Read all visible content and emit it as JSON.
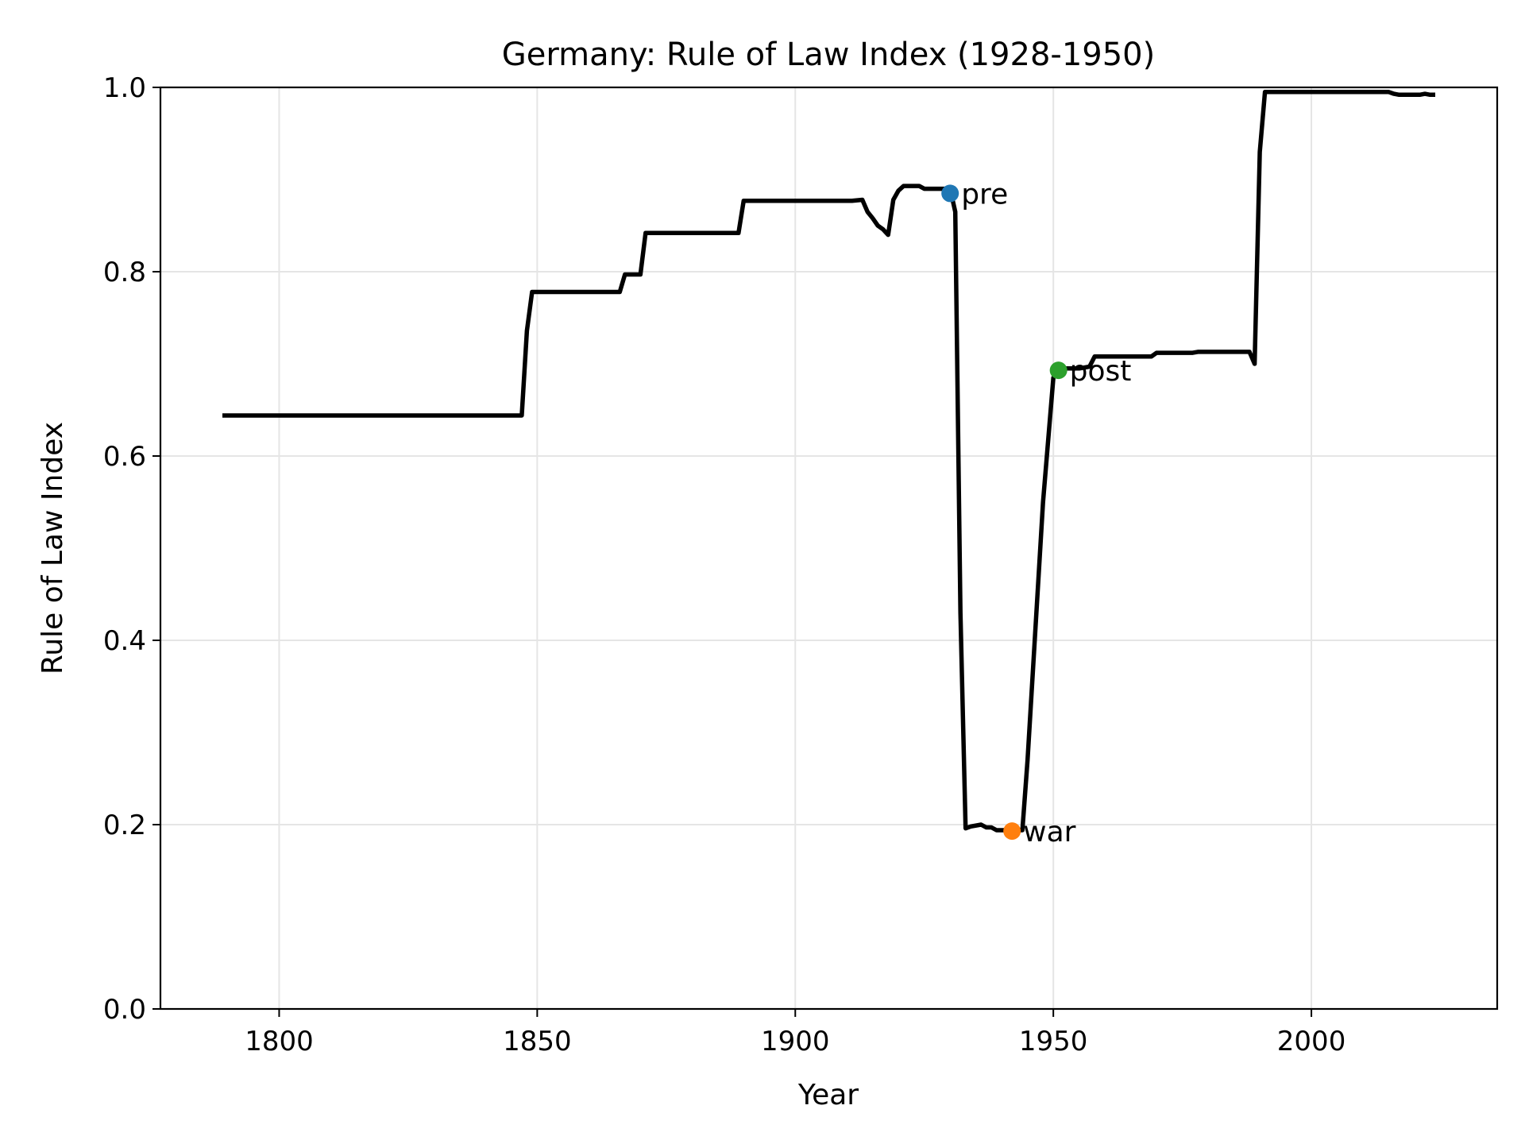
{
  "chart_data": {
    "type": "line",
    "title": "Germany: Rule of Law Index (1928-1950)",
    "xlabel": "Year",
    "ylabel": "Rule of Law Index",
    "xlim": [
      1777,
      2036
    ],
    "ylim": [
      0,
      1.0
    ],
    "x_ticks": [
      1800,
      1850,
      1900,
      1950,
      2000
    ],
    "x_tick_labels": [
      "1800",
      "1850",
      "1900",
      "1950",
      "2000"
    ],
    "y_ticks": [
      0.0,
      0.2,
      0.4,
      0.6,
      0.8,
      1.0
    ],
    "y_tick_labels": [
      "0.0",
      "0.2",
      "0.4",
      "0.6",
      "0.8",
      "1.0"
    ],
    "grid": true,
    "line_color": "#000000",
    "series": [
      {
        "x": [
          1789,
          1847,
          1848,
          1849,
          1866,
          1867,
          1870,
          1871,
          1889,
          1890,
          1911,
          1913,
          1914,
          1915,
          1916,
          1917,
          1918,
          1919,
          1920,
          1921,
          1922,
          1924,
          1925,
          1930,
          1931,
          1932,
          1933,
          1934,
          1936,
          1937,
          1938,
          1939,
          1944,
          1945,
          1948,
          1950,
          1951,
          1952,
          1955,
          1957,
          1958,
          1969,
          1970,
          1977,
          1978,
          1988,
          1989,
          1990,
          1991,
          2015,
          2016,
          2017,
          2020,
          2021,
          2022,
          2023,
          2024
        ],
        "y": [
          0.644,
          0.644,
          0.736,
          0.778,
          0.778,
          0.797,
          0.797,
          0.842,
          0.842,
          0.877,
          0.877,
          0.878,
          0.865,
          0.858,
          0.85,
          0.846,
          0.84,
          0.878,
          0.888,
          0.893,
          0.893,
          0.893,
          0.89,
          0.89,
          0.865,
          0.43,
          0.196,
          0.198,
          0.2,
          0.197,
          0.197,
          0.194,
          0.194,
          0.27,
          0.55,
          0.685,
          0.692,
          0.695,
          0.695,
          0.697,
          0.708,
          0.708,
          0.712,
          0.712,
          0.713,
          0.713,
          0.7,
          0.93,
          0.995,
          0.995,
          0.993,
          0.992,
          0.992,
          0.992,
          0.993,
          0.992,
          0.992
        ]
      }
    ],
    "annotations": [
      {
        "label": "pre",
        "x": 1930,
        "y": 0.885,
        "color": "#1f77b4"
      },
      {
        "label": "war",
        "x": 1942,
        "y": 0.193,
        "color": "#ff7f0e"
      },
      {
        "label": "post",
        "x": 1951,
        "y": 0.693,
        "color": "#2ca02c"
      }
    ]
  }
}
